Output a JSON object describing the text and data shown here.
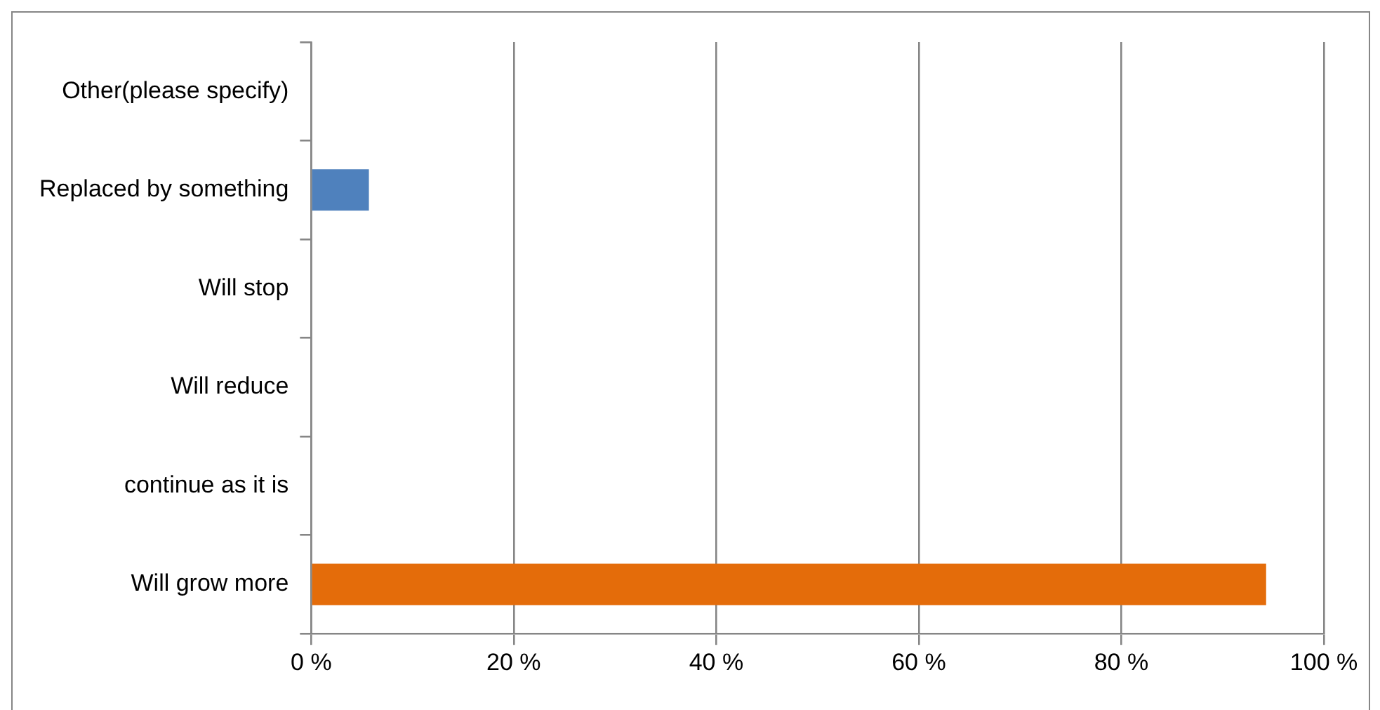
{
  "chart_data": {
    "type": "bar",
    "orientation": "horizontal",
    "categories": [
      "Other(please specify)",
      "Replaced by something",
      "Will stop",
      "Will reduce",
      "continue as it is",
      "Will grow more"
    ],
    "values": [
      0,
      5.7,
      0,
      0,
      0,
      94.3
    ],
    "colors": [
      "#4f81bd",
      "#4f81bd",
      "#4f81bd",
      "#4f81bd",
      "#4f81bd",
      "#e46c0a"
    ],
    "xlim": [
      0,
      100
    ],
    "xticks": [
      {
        "value": 0,
        "label": "0 %"
      },
      {
        "value": 20,
        "label": "20 %"
      },
      {
        "value": 40,
        "label": "40 %"
      },
      {
        "value": 60,
        "label": "60 %"
      },
      {
        "value": 80,
        "label": "80 %"
      },
      {
        "value": 100,
        "label": "100 %"
      }
    ],
    "grid": "x",
    "legend": false
  }
}
